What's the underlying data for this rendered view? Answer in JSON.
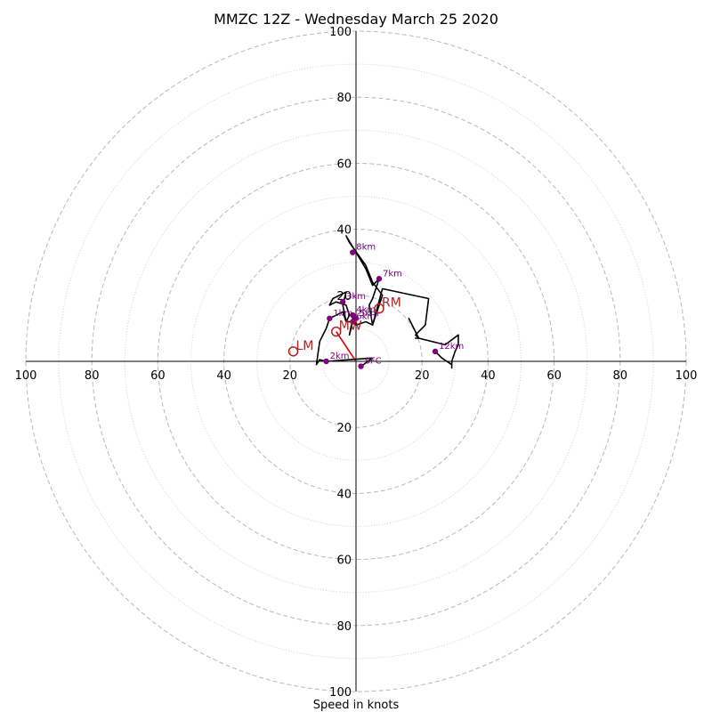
{
  "chart_data": {
    "type": "hodograph",
    "title": "MMZC 12Z - Wednesday March 25 2020",
    "xlabel": "Speed in knots",
    "rings": [
      20,
      40,
      60,
      80,
      100
    ],
    "minor_rings": [
      10,
      30,
      50,
      70,
      90
    ],
    "xlim": [
      -100,
      100
    ],
    "ylim": [
      -100,
      100
    ],
    "tick_labels_x": [
      "100",
      "80",
      "60",
      "40",
      "20",
      "20",
      "40",
      "60",
      "80",
      "100"
    ],
    "tick_values_x": [
      -100,
      -80,
      -60,
      -40,
      -20,
      20,
      40,
      60,
      80,
      100
    ],
    "tick_labels_y": [
      "100",
      "80",
      "60",
      "40",
      "20",
      "20",
      "40",
      "60",
      "80",
      "100"
    ],
    "tick_values_y": [
      100,
      80,
      60,
      40,
      20,
      -20,
      -40,
      -60,
      -80,
      -100
    ],
    "hodograph_trace": [
      [
        1.5,
        -1.5
      ],
      [
        5,
        1
      ],
      [
        -9,
        0
      ],
      [
        -11,
        0.5
      ],
      [
        -12,
        -1
      ],
      [
        -11,
        6
      ],
      [
        -9,
        10
      ],
      [
        -8,
        13
      ],
      [
        -4,
        15
      ],
      [
        -3,
        12
      ],
      [
        -2,
        14
      ],
      [
        -3,
        17
      ],
      [
        -6,
        18
      ],
      [
        -8,
        17
      ],
      [
        -7,
        19
      ],
      [
        -3,
        21
      ],
      [
        -4,
        17
      ],
      [
        -3,
        12
      ],
      [
        -1,
        12
      ],
      [
        -2,
        8
      ],
      [
        -1,
        13
      ],
      [
        0,
        11
      ],
      [
        3,
        12
      ],
      [
        5,
        11
      ],
      [
        4,
        17
      ],
      [
        5,
        19
      ],
      [
        6,
        22
      ],
      [
        7,
        25
      ],
      [
        5,
        23
      ],
      [
        3,
        28
      ],
      [
        -3,
        38
      ],
      [
        -2,
        36
      ],
      [
        3,
        29
      ],
      [
        5,
        24
      ],
      [
        8,
        20
      ],
      [
        5,
        11
      ],
      [
        8,
        22
      ],
      [
        22,
        19
      ],
      [
        21,
        11
      ],
      [
        18,
        8
      ],
      [
        19,
        7
      ],
      [
        16,
        13
      ],
      [
        19,
        7
      ],
      [
        18,
        7
      ],
      [
        19,
        7
      ],
      [
        27,
        5
      ],
      [
        31,
        8
      ],
      [
        31,
        5
      ],
      [
        30,
        3
      ],
      [
        29,
        0
      ],
      [
        29,
        -2
      ],
      [
        29,
        -1
      ],
      [
        26,
        1
      ],
      [
        24,
        3
      ]
    ],
    "height_markers": [
      {
        "label": "SFC",
        "u": 1.5,
        "v": -1.5
      },
      {
        "label": "2km",
        "u": -9,
        "v": 0
      },
      {
        "label": "1km",
        "u": -8,
        "v": 13
      },
      {
        "label": "3km",
        "u": -4,
        "v": 18
      },
      {
        "label": "4km",
        "u": -1,
        "v": 14
      },
      {
        "label": "5km",
        "u": 0,
        "v": 13
      },
      {
        "label": "6km",
        "u": -1,
        "v": 12
      },
      {
        "label": "7km",
        "u": 7,
        "v": 25
      },
      {
        "label": "8km",
        "u": -1,
        "v": 33
      },
      {
        "label": "12km",
        "u": 24,
        "v": 3
      }
    ],
    "storm_motions": [
      {
        "label": "RM",
        "u": 7,
        "v": 16
      },
      {
        "label": "LM",
        "u": -19,
        "v": 3
      },
      {
        "label": "MW",
        "u": -6,
        "v": 9
      }
    ],
    "mean_wind_vector": {
      "from": [
        0,
        0
      ],
      "to": [
        -6,
        9
      ]
    },
    "colors": {
      "trace": "#000000",
      "height_markers": "#800080",
      "storm_motion": "#b22222",
      "mean_wind": "#e00000",
      "rings": "#b8b8b8"
    }
  }
}
